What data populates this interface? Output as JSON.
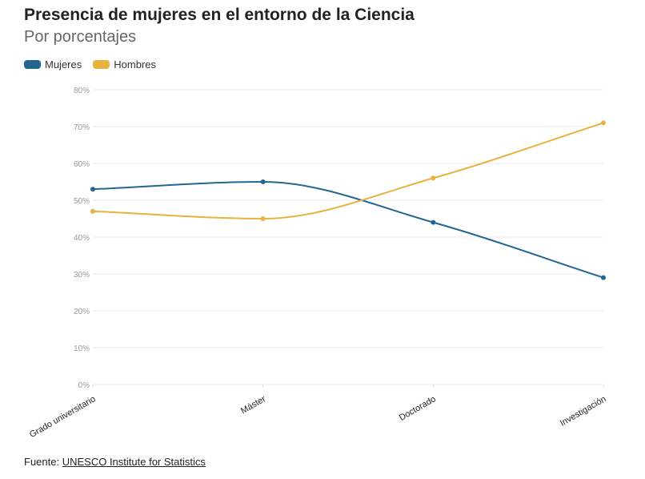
{
  "chart_data": {
    "type": "line",
    "title": "Presencia de mujeres en el entorno de la Ciencia",
    "subtitle": "Por porcentajes",
    "categories": [
      "Grado universitario",
      "Máster",
      "Doctorado",
      "Investigación"
    ],
    "series": [
      {
        "name": "Mujeres",
        "color": "#236692",
        "values": [
          53,
          55,
          44,
          29
        ]
      },
      {
        "name": "Hombres",
        "color": "#E8B23E",
        "values": [
          47,
          45,
          56,
          71
        ]
      }
    ],
    "ylim": [
      0,
      80
    ],
    "yticks": [
      "0%",
      "10%",
      "20%",
      "30%",
      "40%",
      "50%",
      "60%",
      "70%",
      "80%"
    ],
    "grid": true,
    "legend": "top-left"
  },
  "source": {
    "label": "Fuente:",
    "link": "UNESCO Institute for Statistics"
  }
}
